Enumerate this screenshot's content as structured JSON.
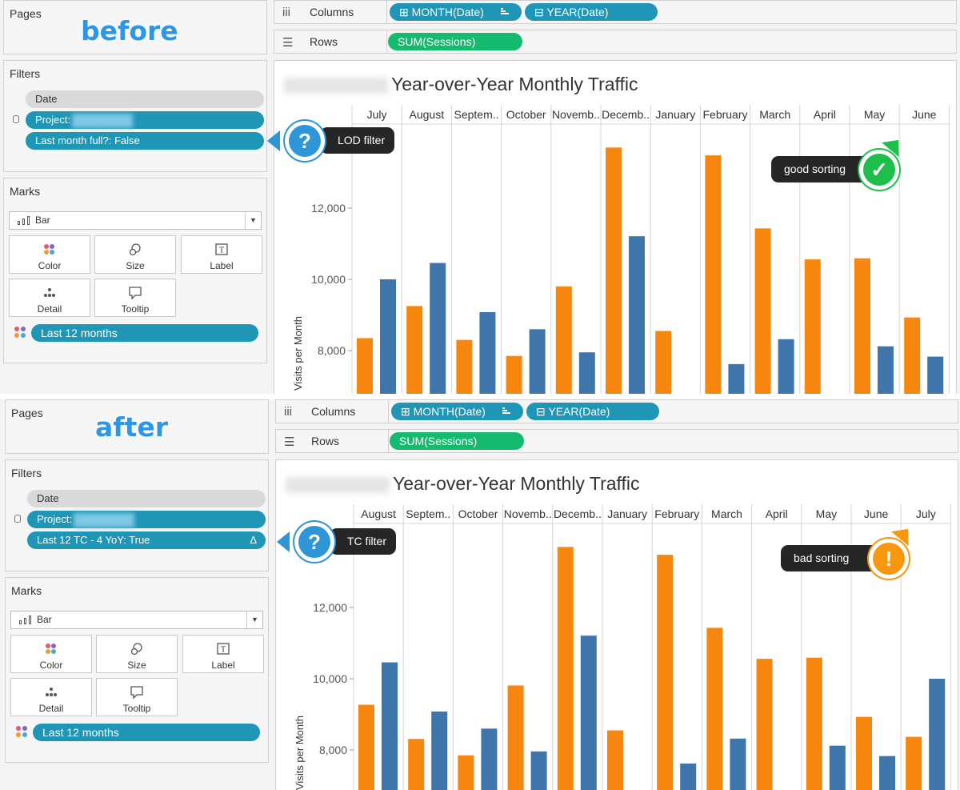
{
  "colors": {
    "orange": "#f7860f",
    "blue": "#3e76ac",
    "teal": "#1f96b5",
    "green": "#14ba6e"
  },
  "axis": {
    "ylabel": "Visits per Month",
    "ticks": [
      "12,000",
      "10,000",
      "8,000"
    ]
  },
  "panels": [
    {
      "label": "before",
      "pages_title": "Pages",
      "filters_title": "Filters",
      "filters": [
        {
          "text": "Date",
          "style": "grey"
        },
        {
          "text": "Project:",
          "style": "teal",
          "redacted": true
        },
        {
          "text": "Last month full?: False",
          "style": "teal"
        }
      ],
      "marks_title": "Marks",
      "mark_type": "Bar",
      "mark_buttons": [
        "Color",
        "Size",
        "Label",
        "Detail",
        "Tooltip"
      ],
      "color_pill": "Last 12 months",
      "columns_label": "Columns",
      "rows_label": "Rows",
      "column_pills": [
        "MONTH(Date)",
        "YEAR(Date)"
      ],
      "row_pill": "SUM(Sessions)",
      "chart_title": "Year-over-Year Monthly Traffic",
      "callout_filter": "LOD filter",
      "callout_status": "good sorting",
      "status": "good"
    },
    {
      "label": "after",
      "pages_title": "Pages",
      "filters_title": "Filters",
      "filters": [
        {
          "text": "Date",
          "style": "grey"
        },
        {
          "text": "Project:",
          "style": "teal",
          "redacted": true
        },
        {
          "text": "Last 12 TC - 4 YoY: True",
          "style": "teal",
          "delta": "Δ"
        }
      ],
      "marks_title": "Marks",
      "mark_type": "Bar",
      "mark_buttons": [
        "Color",
        "Size",
        "Label",
        "Detail",
        "Tooltip"
      ],
      "color_pill": "Last 12 months",
      "columns_label": "Columns",
      "rows_label": "Rows",
      "column_pills": [
        "MONTH(Date)",
        "YEAR(Date)"
      ],
      "row_pill": "SUM(Sessions)",
      "chart_title": "Year-over-Year Monthly Traffic",
      "callout_filter": "TC filter",
      "callout_status": "bad sorting",
      "status": "bad"
    }
  ],
  "chart_data": [
    {
      "type": "bar",
      "title": "Year-over-Year Monthly Traffic",
      "ylabel": "Visits per Month",
      "yticks": [
        8000,
        10000,
        12000
      ],
      "categories": [
        "July",
        "August",
        "Septem..",
        "October",
        "Novemb..",
        "Decemb..",
        "January",
        "February",
        "March",
        "April",
        "May",
        "June"
      ],
      "series": [
        {
          "color": "#f7860f",
          "values": [
            8350,
            9250,
            8300,
            7850,
            9800,
            13700,
            8550,
            13480,
            11430,
            10560,
            10590,
            8930
          ]
        },
        {
          "color": "#3e76ac",
          "values": [
            10000,
            10460,
            9080,
            8600,
            7950,
            11210,
            null,
            7620,
            8320,
            null,
            8120,
            7830
          ]
        }
      ]
    },
    {
      "type": "bar",
      "title": "Year-over-Year Monthly Traffic",
      "ylabel": "Visits per Month",
      "yticks": [
        8000,
        10000,
        12000
      ],
      "categories": [
        "August",
        "Septem..",
        "October",
        "Novemb..",
        "Decemb..",
        "January",
        "February",
        "March",
        "April",
        "May",
        "June",
        "July"
      ],
      "series": [
        {
          "color": "#f7860f",
          "values": [
            9270,
            8310,
            7850,
            9810,
            13700,
            8550,
            13480,
            11430,
            10560,
            10590,
            8930,
            8370
          ]
        },
        {
          "color": "#3e76ac",
          "values": [
            10460,
            9080,
            8600,
            7960,
            11210,
            null,
            7620,
            8320,
            null,
            8120,
            7830,
            10000
          ]
        }
      ]
    }
  ]
}
